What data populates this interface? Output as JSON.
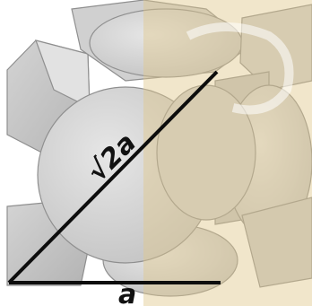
{
  "labels": {
    "face_diagonal": "√2a",
    "edge": "a"
  },
  "colors": {
    "atom_fill": "#d9d9d9",
    "atom_shade": "#bcbcbc",
    "atom_stroke": "#8f8f8f",
    "line": "#0d0d0d",
    "watermark": "#e0c88c"
  }
}
